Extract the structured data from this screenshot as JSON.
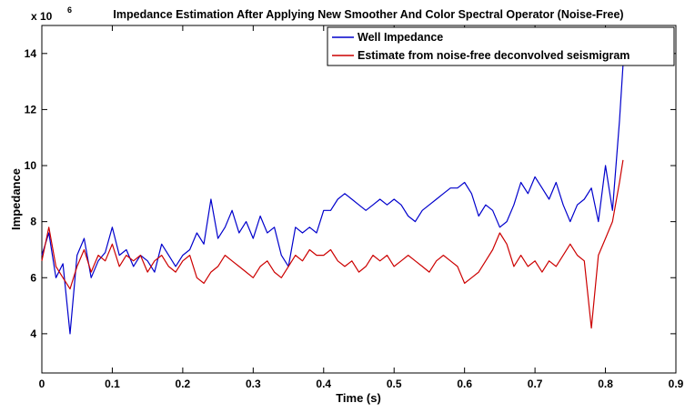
{
  "chart_data": {
    "type": "line",
    "title": "Impedance Estimation After Applying New Smoother And Color Spectral Operator (Noise-Free)",
    "xlabel": "Time (s)",
    "ylabel": "Impedance",
    "y_multiplier_label": "x 10",
    "y_multiplier_exponent": "6",
    "xlim": [
      0,
      0.9
    ],
    "ylim": [
      2.6,
      15.0
    ],
    "x_ticks": [
      0,
      0.1,
      0.2,
      0.3,
      0.4,
      0.5,
      0.6,
      0.7,
      0.8,
      0.9
    ],
    "x_tick_labels": [
      "0",
      "0.1",
      "0.2",
      "0.3",
      "0.4",
      "0.5",
      "0.6",
      "0.7",
      "0.8",
      "0.9"
    ],
    "y_ticks": [
      4,
      6,
      8,
      10,
      12,
      14
    ],
    "y_tick_labels": [
      "4",
      "6",
      "8",
      "10",
      "12",
      "14"
    ],
    "legend_position": "top-right",
    "grid": false,
    "series": [
      {
        "name": "Well Impedance",
        "color": "#0000cc",
        "x": [
          0,
          0.01,
          0.02,
          0.03,
          0.04,
          0.05,
          0.06,
          0.07,
          0.08,
          0.09,
          0.1,
          0.11,
          0.12,
          0.13,
          0.14,
          0.15,
          0.16,
          0.17,
          0.18,
          0.19,
          0.2,
          0.21,
          0.22,
          0.23,
          0.24,
          0.25,
          0.26,
          0.27,
          0.28,
          0.29,
          0.3,
          0.31,
          0.32,
          0.33,
          0.34,
          0.35,
          0.36,
          0.37,
          0.38,
          0.39,
          0.4,
          0.41,
          0.42,
          0.43,
          0.44,
          0.45,
          0.46,
          0.47,
          0.48,
          0.49,
          0.5,
          0.51,
          0.52,
          0.53,
          0.54,
          0.55,
          0.56,
          0.57,
          0.58,
          0.59,
          0.6,
          0.61,
          0.62,
          0.63,
          0.64,
          0.65,
          0.66,
          0.67,
          0.68,
          0.69,
          0.7,
          0.71,
          0.72,
          0.73,
          0.74,
          0.75,
          0.76,
          0.77,
          0.78,
          0.79,
          0.8,
          0.81,
          0.82,
          0.825
        ],
        "values": [
          6.8,
          7.6,
          6.0,
          6.5,
          4.0,
          6.8,
          7.4,
          6.0,
          6.6,
          6.9,
          7.8,
          6.8,
          7.0,
          6.4,
          6.8,
          6.6,
          6.2,
          7.2,
          6.8,
          6.4,
          6.8,
          7.0,
          7.6,
          7.2,
          8.8,
          7.4,
          7.8,
          8.4,
          7.6,
          8.0,
          7.4,
          8.2,
          7.6,
          7.8,
          6.8,
          6.4,
          7.8,
          7.6,
          7.8,
          7.6,
          8.4,
          8.4,
          8.8,
          9.0,
          8.8,
          8.6,
          8.4,
          8.6,
          8.8,
          8.6,
          8.8,
          8.6,
          8.2,
          8.0,
          8.4,
          8.6,
          8.8,
          9.0,
          9.2,
          9.2,
          9.4,
          9.0,
          8.2,
          8.6,
          8.4,
          7.8,
          8.0,
          8.6,
          9.4,
          9.0,
          9.6,
          9.2,
          8.8,
          9.4,
          8.6,
          8.0,
          8.6,
          8.8,
          9.2,
          8.0,
          10.0,
          8.4,
          11.6,
          13.6
        ]
      },
      {
        "name": "Estimate from noise-free deconvolved seismigram",
        "color": "#cc0000",
        "x": [
          0,
          0.01,
          0.02,
          0.03,
          0.04,
          0.05,
          0.06,
          0.07,
          0.08,
          0.09,
          0.1,
          0.11,
          0.12,
          0.13,
          0.14,
          0.15,
          0.16,
          0.17,
          0.18,
          0.19,
          0.2,
          0.21,
          0.22,
          0.23,
          0.24,
          0.25,
          0.26,
          0.27,
          0.28,
          0.29,
          0.3,
          0.31,
          0.32,
          0.33,
          0.34,
          0.35,
          0.36,
          0.37,
          0.38,
          0.39,
          0.4,
          0.41,
          0.42,
          0.43,
          0.44,
          0.45,
          0.46,
          0.47,
          0.48,
          0.49,
          0.5,
          0.51,
          0.52,
          0.53,
          0.54,
          0.55,
          0.56,
          0.57,
          0.58,
          0.59,
          0.6,
          0.61,
          0.62,
          0.63,
          0.64,
          0.65,
          0.66,
          0.67,
          0.68,
          0.69,
          0.7,
          0.71,
          0.72,
          0.73,
          0.74,
          0.75,
          0.76,
          0.77,
          0.78,
          0.79,
          0.8,
          0.81,
          0.82,
          0.825
        ],
        "values": [
          6.6,
          7.8,
          6.4,
          6.0,
          5.6,
          6.4,
          7.0,
          6.2,
          6.8,
          6.6,
          7.2,
          6.4,
          6.8,
          6.6,
          6.8,
          6.2,
          6.6,
          6.8,
          6.4,
          6.2,
          6.6,
          6.8,
          6.0,
          5.8,
          6.2,
          6.4,
          6.8,
          6.6,
          6.4,
          6.2,
          6.0,
          6.4,
          6.6,
          6.2,
          6.0,
          6.4,
          6.8,
          6.6,
          7.0,
          6.8,
          6.8,
          7.0,
          6.6,
          6.4,
          6.6,
          6.2,
          6.4,
          6.8,
          6.6,
          6.8,
          6.4,
          6.6,
          6.8,
          6.6,
          6.4,
          6.2,
          6.6,
          6.8,
          6.6,
          6.4,
          5.8,
          6.0,
          6.2,
          6.6,
          7.0,
          7.6,
          7.2,
          6.4,
          6.8,
          6.4,
          6.6,
          6.2,
          6.6,
          6.4,
          6.8,
          7.2,
          6.8,
          6.6,
          4.2,
          6.8,
          7.4,
          8.0,
          9.4,
          10.2
        ]
      }
    ]
  }
}
